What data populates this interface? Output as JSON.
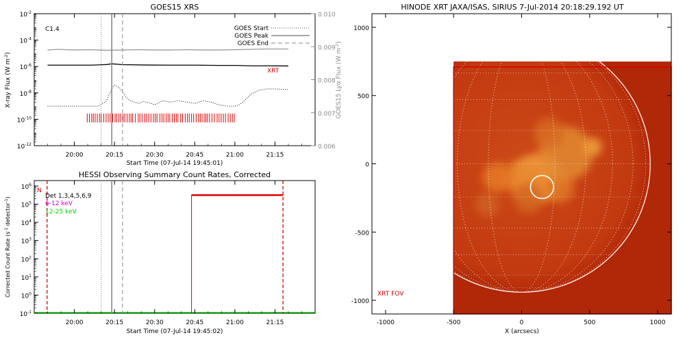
{
  "chart_data": [
    {
      "id": "goes",
      "type": "line",
      "title": "GOES15 XRS",
      "xlabel": "Start Time (07-Jul-14 19:45:01)",
      "ylabel": "X-ray Flux (W m",
      "ylabel_sup": "-2",
      "y2label": "GOES15 Lyα Flux (W m",
      "y2label_sup": "-2",
      "x_ticks": [
        "20:00",
        "20:15",
        "20:30",
        "20:45",
        "21:00",
        "21:15"
      ],
      "y_ticks": [
        {
          "base": "10",
          "exp": "-2"
        },
        {
          "base": "10",
          "exp": "-4"
        },
        {
          "base": "10",
          "exp": "-6"
        },
        {
          "base": "10",
          "exp": "-8"
        },
        {
          "base": "10",
          "exp": "-10"
        },
        {
          "base": "10",
          "exp": "-12"
        }
      ],
      "y2_ticks": [
        "0.010",
        "0.009",
        "0.008",
        "0.007",
        "0.006"
      ],
      "annotation": "C1.4",
      "xrt_label": "XRT",
      "legend": [
        {
          "name": "GOES Start",
          "style": "dotted"
        },
        {
          "name": "GOES Peak",
          "style": "solid"
        },
        {
          "name": "GOES End",
          "style": "dashed"
        }
      ],
      "x_domain_min": [
        19.833,
        21.333
      ],
      "y_log_range": [
        -12,
        -2
      ],
      "y2_range": [
        0.006,
        0.01
      ],
      "event_min": {
        "start": 20.167,
        "peak": 20.233,
        "end": 20.3
      },
      "series": [
        {
          "color": "#000000",
          "x_min": [
            19.833,
            20.0,
            20.1,
            20.15,
            20.2,
            20.233,
            20.3,
            20.45,
            20.6,
            20.75,
            20.9,
            21.0,
            21.1,
            21.2,
            21.333
          ],
          "log_y": [
            -5.9,
            -5.9,
            -5.9,
            -5.88,
            -5.85,
            -5.8,
            -5.86,
            -5.89,
            -5.9,
            -5.9,
            -5.92,
            -5.92,
            -5.95,
            -5.95,
            -5.96
          ]
        },
        {
          "color": "#999999",
          "x_min": [
            19.833,
            19.9,
            20.0,
            20.1,
            20.2,
            20.3,
            20.4,
            20.5,
            20.6,
            20.7,
            20.8,
            20.9,
            21.0,
            21.1,
            21.2,
            21.333
          ],
          "y": [
            0.0089,
            0.00892,
            0.0089,
            0.00891,
            0.00889,
            0.0089,
            0.00891,
            0.0089,
            0.0089,
            0.00891,
            0.0089,
            0.0089,
            0.00891,
            0.00892,
            0.00893,
            0.00893
          ]
        },
        {
          "style": "dotted",
          "color": "#000000",
          "x_min": [
            19.833,
            20.0,
            20.15,
            20.2,
            20.233,
            20.25,
            20.28,
            20.3,
            20.32,
            20.35,
            20.4,
            20.43,
            20.47,
            20.5,
            20.55,
            20.6,
            20.65,
            20.7,
            20.75,
            20.8,
            20.85,
            20.9,
            20.95,
            21.0,
            21.02,
            21.05,
            21.1,
            21.15,
            21.2,
            21.25,
            21.333
          ],
          "log_y": [
            -9.0,
            -9.0,
            -9.0,
            -8.6,
            -7.7,
            -7.4,
            -7.6,
            -7.9,
            -8.3,
            -8.6,
            -8.8,
            -8.65,
            -8.75,
            -8.9,
            -8.6,
            -8.7,
            -8.6,
            -8.7,
            -8.8,
            -8.6,
            -8.7,
            -8.9,
            -9.0,
            -9.0,
            -8.95,
            -8.7,
            -8.1,
            -7.8,
            -7.7,
            -7.7,
            -7.75
          ]
        }
      ],
      "xrt_obs_min": [
        20.08,
        21.0
      ]
    },
    {
      "id": "hessi",
      "type": "line",
      "title": "HESSI Observing Summary Count Rates, Corrected",
      "xlabel": "Start Time (07-Jul-14 19:45:02)",
      "ylabel": "Corrected Count Rate (s",
      "ylabel_sup": "-1",
      "ylabel_tail": " detector",
      "ylabel_tail_sup": "-1",
      "x_ticks": [
        "20:00",
        "20:15",
        "20:30",
        "20:45",
        "21:00",
        "21:15"
      ],
      "y_ticks": [
        {
          "base": "10",
          "exp": "6"
        },
        {
          "base": "10",
          "exp": "5"
        },
        {
          "base": "10",
          "exp": "4"
        },
        {
          "base": "10",
          "exp": "3"
        },
        {
          "base": "10",
          "exp": "2"
        },
        {
          "base": "10",
          "exp": "1"
        },
        {
          "base": "10",
          "exp": "0"
        },
        {
          "base": "10",
          "exp": "-1"
        }
      ],
      "legend_text": "Det 1,3,4,5,6,9",
      "legend": [
        {
          "name": "6-12 keV",
          "color": "#cc00cc"
        },
        {
          "name": "12-25 keV",
          "color": "#00cc00"
        }
      ],
      "flag_label": "N",
      "y_log_range": [
        -1,
        6
      ],
      "red_block": {
        "x_min_start": 20.73,
        "x_min_end": 21.3,
        "log_y": 5.5
      },
      "red_dashed_min": [
        19.83,
        21.3
      ]
    },
    {
      "id": "xrt",
      "type": "heatmap",
      "title": "HINODE XRT JAXA/ISAS, SIRIUS  7-Jul-2014 20:18:29.192 UT",
      "xlabel": "X (arcsecs)",
      "x_ticks": [
        "-1000",
        "-500",
        "0",
        "500",
        "1000"
      ],
      "y_ticks": [
        "1000",
        "500",
        "0",
        "-500",
        "-1000"
      ],
      "x_range": [
        -1100,
        1100
      ],
      "y_range": [
        -1100,
        1100
      ],
      "fov_label": "XRT FOV",
      "fov_arcsec": {
        "x": [
          -500,
          1100
        ],
        "y": [
          -1100,
          750
        ]
      },
      "solar_radius_arcsec": 945,
      "flare_circle": {
        "x": 150,
        "y": -170,
        "r": 85
      }
    }
  ]
}
